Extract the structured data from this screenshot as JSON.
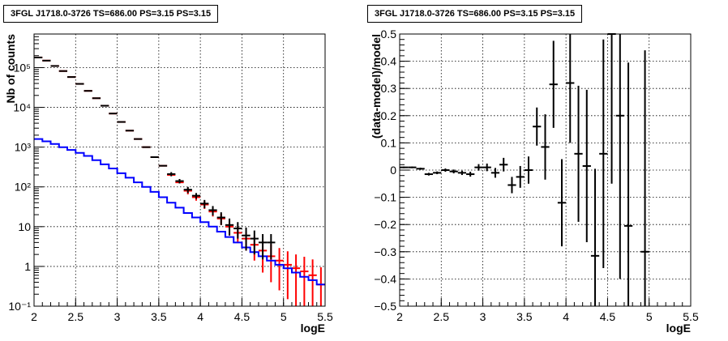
{
  "chart_data": [
    {
      "type": "line",
      "title": "3FGL J1718.0-3726 TS=686.00 PS=3.15 PS=3.15",
      "xlabel": "logE",
      "ylabel": "Nb of counts",
      "xlim": [
        2,
        5.5
      ],
      "ylim": [
        0.1,
        700000
      ],
      "yscale": "log",
      "grid": true,
      "x_ticks": [
        "2",
        "2.5",
        "3",
        "3.5",
        "4",
        "4.5",
        "5",
        "5.5"
      ],
      "y_ticks": [
        "10⁻¹",
        "1",
        "10",
        "10²",
        "10³",
        "10⁴",
        "10⁵"
      ],
      "bin_width": 0.1,
      "series": [
        {
          "color": "#ff0000",
          "style": "markers-errorbars",
          "x": [
            2.05,
            2.15,
            2.25,
            2.35,
            2.45,
            2.55,
            2.65,
            2.75,
            2.85,
            2.95,
            3.05,
            3.15,
            3.25,
            3.35,
            3.45,
            3.55,
            3.65,
            3.75,
            3.85,
            3.95,
            4.05,
            4.15,
            4.25,
            4.35,
            4.45,
            4.55,
            4.65,
            4.75,
            4.85,
            4.95,
            5.05,
            5.15,
            5.25,
            5.35,
            5.45
          ],
          "values": [
            180000,
            150000,
            110000,
            82000,
            58000,
            39000,
            26000,
            17000,
            11000,
            7000,
            4300,
            2600,
            1600,
            1000,
            560,
            340,
            200,
            130,
            80,
            55,
            36,
            24,
            16,
            10,
            7,
            5,
            3.5,
            2.5,
            1.8,
            1.4,
            1.1,
            0.9,
            0.75,
            0.6,
            0.35
          ],
          "err_lo": [
            0,
            0,
            0,
            0,
            0,
            0,
            0,
            0,
            0,
            0,
            0,
            0,
            0,
            0,
            0,
            0,
            0,
            0,
            15,
            10,
            8,
            6,
            5,
            4,
            3,
            2.5,
            2.1,
            1.8,
            1.4,
            1.15,
            0.95,
            0.8,
            0.68,
            0.55,
            0.33
          ],
          "err_hi": [
            0,
            0,
            0,
            0,
            0,
            0,
            0,
            0,
            0,
            0,
            0,
            0,
            0,
            0,
            0,
            0,
            0,
            0,
            15,
            10,
            8,
            6,
            5,
            4,
            3,
            2.5,
            2.2,
            2,
            1.8,
            1.5,
            1.3,
            1.1,
            1,
            0.9,
            0.6
          ]
        },
        {
          "color": "#0000ff",
          "style": "step",
          "x": [
            2.05,
            2.15,
            2.25,
            2.35,
            2.45,
            2.55,
            2.65,
            2.75,
            2.85,
            2.95,
            3.05,
            3.15,
            3.25,
            3.35,
            3.45,
            3.55,
            3.65,
            3.75,
            3.85,
            3.95,
            4.05,
            4.15,
            4.25,
            4.35,
            4.45,
            4.55,
            4.65,
            4.75,
            4.85,
            4.95,
            5.05,
            5.15,
            5.25,
            5.35,
            5.45
          ],
          "values": [
            1600,
            1400,
            1200,
            1000,
            850,
            720,
            600,
            470,
            370,
            290,
            220,
            170,
            130,
            100,
            75,
            55,
            40,
            30,
            22,
            17,
            13,
            10,
            7.5,
            5.5,
            4,
            3,
            2.3,
            1.8,
            1.4,
            1.1,
            0.9,
            0.7,
            0.55,
            0.45,
            0.35
          ]
        },
        {
          "color": "#000000",
          "style": "markers-errorbars",
          "x": [
            2.05,
            2.15,
            2.25,
            2.35,
            2.45,
            2.55,
            2.65,
            2.75,
            2.85,
            2.95,
            3.05,
            3.15,
            3.25,
            3.35,
            3.45,
            3.55,
            3.65,
            3.75,
            3.85,
            3.95,
            4.05,
            4.15,
            4.25,
            4.35,
            4.45,
            4.55,
            4.65,
            4.75,
            4.85
          ],
          "values": [
            180000,
            150000,
            110000,
            82000,
            58000,
            39000,
            26000,
            17000,
            11000,
            7000,
            4300,
            2600,
            1600,
            1000,
            560,
            340,
            210,
            140,
            85,
            60,
            38,
            26,
            17,
            11,
            9,
            6,
            5,
            4,
            4
          ],
          "err_lo": [
            0,
            0,
            0,
            0,
            0,
            0,
            0,
            0,
            0,
            0,
            0,
            0,
            0,
            0,
            0,
            0,
            25,
            18,
            15,
            10,
            9,
            7,
            6,
            5,
            4,
            3.5,
            3,
            2.5,
            2.5
          ],
          "err_hi": [
            0,
            0,
            0,
            0,
            0,
            0,
            0,
            0,
            0,
            0,
            0,
            0,
            0,
            0,
            0,
            0,
            25,
            18,
            15,
            10,
            9,
            7,
            6,
            5,
            4,
            3.5,
            3,
            2.5,
            2.5
          ]
        }
      ]
    },
    {
      "type": "scatter",
      "title": "3FGL J1718.0-3726 TS=686.00 PS=3.15 PS=3.15",
      "xlabel": "logE",
      "ylabel": "(data-model)/model",
      "xlim": [
        2,
        5.5
      ],
      "ylim": [
        -0.5,
        0.5
      ],
      "grid": true,
      "x_ticks": [
        "2",
        "2.5",
        "3",
        "3.5",
        "4",
        "4.5",
        "5",
        "5.5"
      ],
      "y_ticks": [
        "−0.5",
        "−0.4",
        "−0.3",
        "−0.2",
        "−0.1",
        "0",
        "0.1",
        "0.2",
        "0.3",
        "0.4",
        "0.5"
      ],
      "bin_width": 0.1,
      "series": [
        {
          "color": "#000000",
          "style": "markers-errorbars",
          "x": [
            2.05,
            2.15,
            2.25,
            2.35,
            2.45,
            2.55,
            2.65,
            2.75,
            2.85,
            2.95,
            3.05,
            3.15,
            3.25,
            3.35,
            3.45,
            3.55,
            3.65,
            3.75,
            3.85,
            3.95,
            4.05,
            4.15,
            4.25,
            4.35,
            4.45,
            4.55,
            4.65,
            4.75,
            4.95
          ],
          "values": [
            0.01,
            0.01,
            0.005,
            -0.015,
            -0.01,
            0.0,
            -0.005,
            -0.01,
            -0.015,
            0.01,
            0.01,
            -0.01,
            0.02,
            -0.055,
            -0.025,
            0.0,
            0.16,
            0.085,
            0.315,
            -0.12,
            0.32,
            0.06,
            0.015,
            -0.315,
            0.06,
            0.5,
            0.2,
            -0.205,
            -0.3
          ],
          "err": [
            0.003,
            0.003,
            0.004,
            0.005,
            0.005,
            0.006,
            0.007,
            0.008,
            0.009,
            0.012,
            0.014,
            0.018,
            0.025,
            0.03,
            0.04,
            0.05,
            0.07,
            0.12,
            0.16,
            0.16,
            0.22,
            0.25,
            0.28,
            0.32,
            0.42,
            0.55,
            0.6,
            0.6,
            0.74
          ]
        }
      ]
    }
  ]
}
